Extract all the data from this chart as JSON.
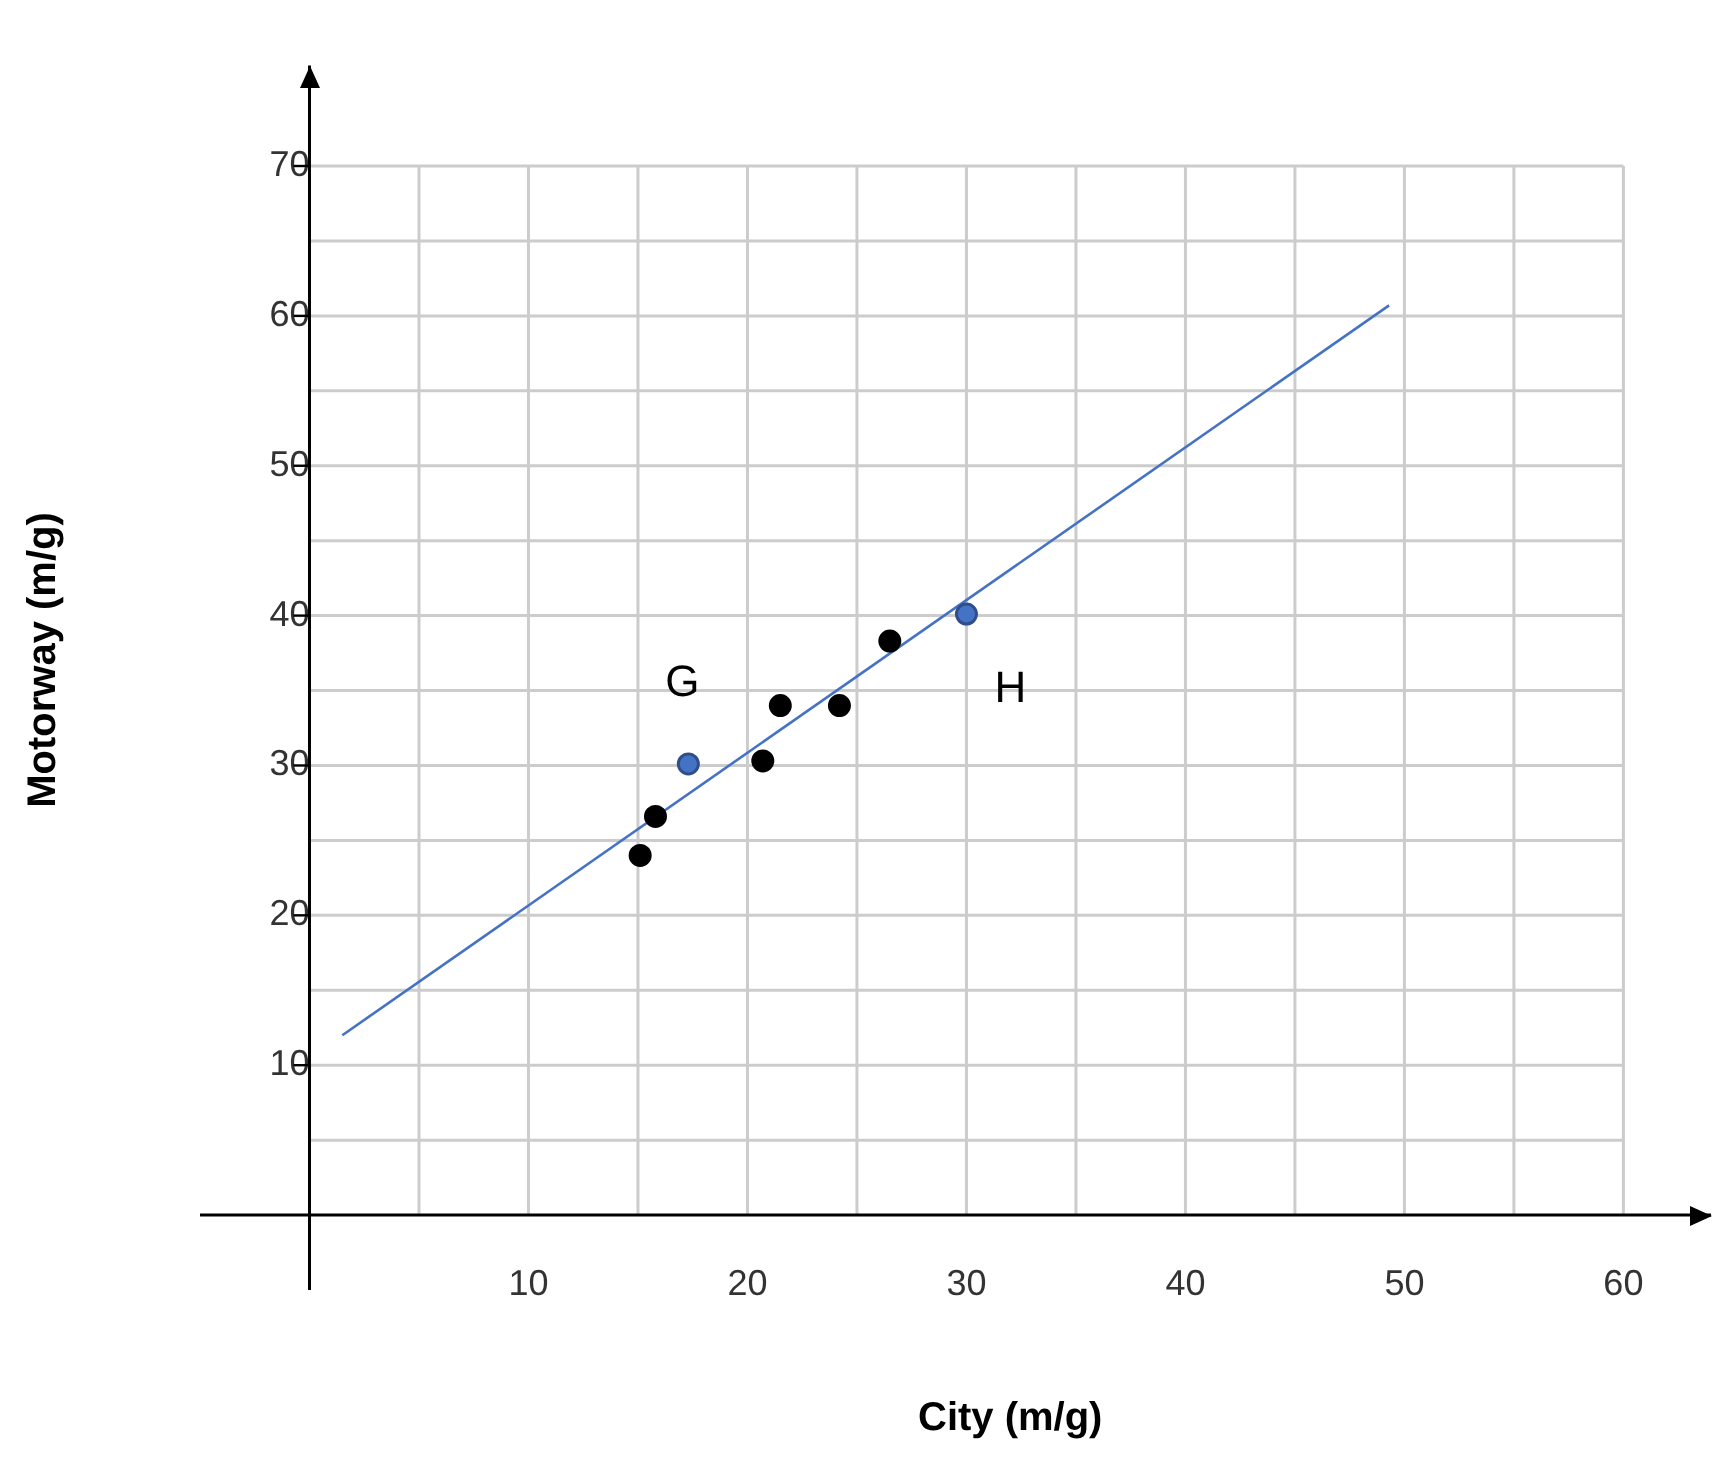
{
  "chart_data": {
    "type": "scatter",
    "xlabel": "City (m/g)",
    "ylabel": "Motorway (m/g)",
    "series": [
      {
        "color": "#000000",
        "x": [
          15.1,
          15.8,
          20.7,
          21.5,
          24.2,
          26.5
        ],
        "values": [
          24.0,
          26.6,
          30.3,
          34.0,
          34.0,
          38.3
        ]
      },
      {
        "color": "#4472c4",
        "x": [
          17.3,
          30.0
        ],
        "values": [
          30.1,
          40.1
        ]
      },
      {
        "type": "line",
        "color": "#4472c4",
        "marker": "none",
        "x": [
          1.5,
          49.3
        ],
        "values": [
          12.0,
          60.7
        ]
      }
    ],
    "annotations": [
      {
        "text": "G",
        "x": 17.3,
        "y": 30.1
      },
      {
        "text": "H",
        "x": 30.0,
        "y": 40.1
      }
    ],
    "xlim": [
      -5,
      64
    ],
    "ylim": [
      -5,
      76.7
    ],
    "xticks": [
      {
        "value": 5,
        "label": null
      },
      10,
      {
        "value": 15,
        "label": null
      },
      20,
      {
        "value": 25,
        "label": null
      },
      30,
      {
        "value": 35,
        "label": null
      },
      40,
      {
        "value": 45,
        "label": null
      },
      50,
      {
        "value": 55,
        "label": null
      },
      60
    ],
    "yticks": [
      {
        "value": 5,
        "label": null
      },
      10,
      {
        "value": 15,
        "label": null
      },
      20,
      {
        "value": 25,
        "label": null
      },
      30,
      {
        "value": 35,
        "label": null
      },
      40,
      {
        "value": 45,
        "label": null
      },
      50,
      {
        "value": 55,
        "label": null
      },
      60,
      {
        "value": 65,
        "label": null
      },
      70
    ],
    "grid": true,
    "legend": false,
    "marker": "circle"
  }
}
